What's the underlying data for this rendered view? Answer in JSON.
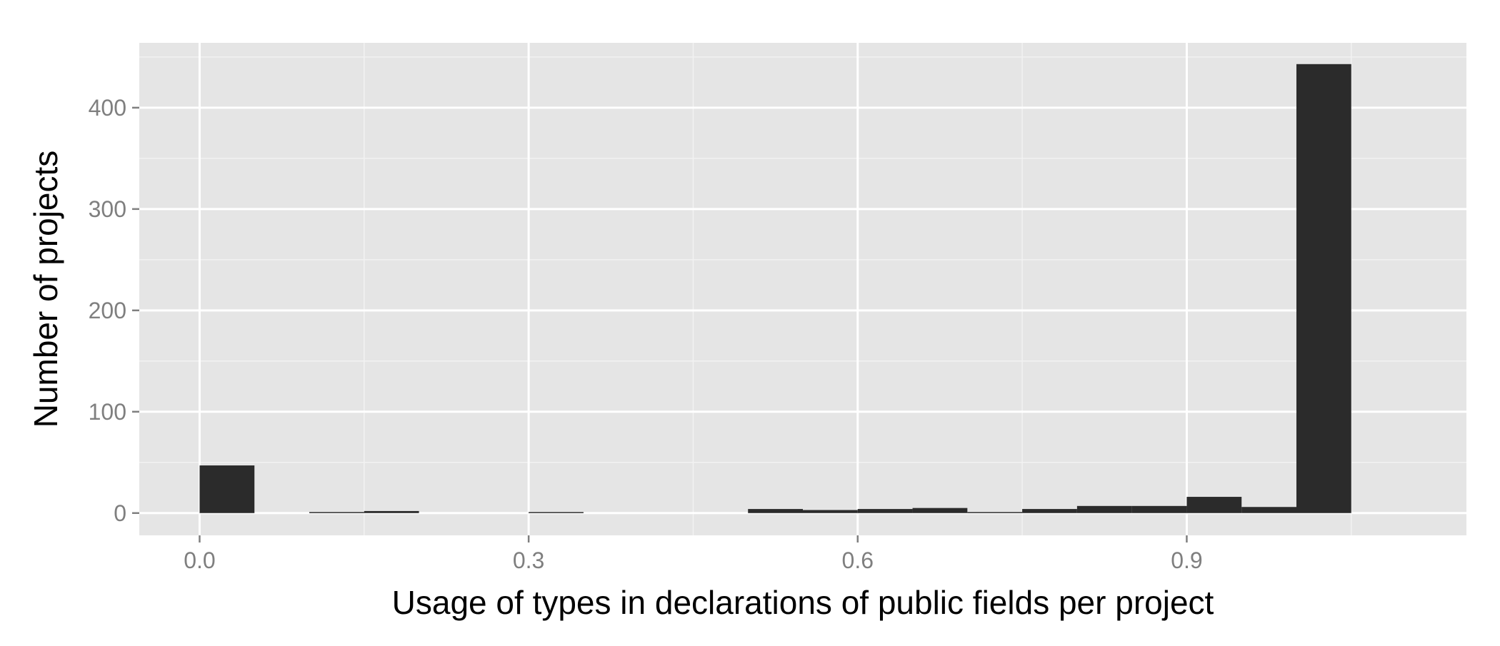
{
  "chart_data": {
    "type": "bar",
    "title": "",
    "xlabel": "Usage of types in declarations of public fields per project",
    "ylabel": "Number of projects",
    "xlim": [
      -0.055,
      1.155
    ],
    "ylim": [
      -22,
      464
    ],
    "x_ticks": [
      {
        "value": 0.0,
        "label": "0.0"
      },
      {
        "value": 0.3,
        "label": "0.3"
      },
      {
        "value": 0.6,
        "label": "0.6"
      },
      {
        "value": 0.9,
        "label": "0.9"
      }
    ],
    "y_ticks": [
      {
        "value": 0,
        "label": "0"
      },
      {
        "value": 100,
        "label": "100"
      },
      {
        "value": 200,
        "label": "200"
      },
      {
        "value": 300,
        "label": "300"
      },
      {
        "value": 400,
        "label": "400"
      }
    ],
    "bin_width": 0.05,
    "bin_starts": [
      0.0,
      0.05,
      0.1,
      0.15,
      0.2,
      0.25,
      0.3,
      0.35,
      0.4,
      0.45,
      0.5,
      0.55,
      0.6,
      0.65,
      0.7,
      0.75,
      0.8,
      0.85,
      0.9,
      0.95,
      1.0
    ],
    "values": [
      47,
      0,
      1,
      2,
      0,
      0,
      1,
      0,
      0,
      0,
      4,
      3,
      4,
      5,
      1,
      4,
      7,
      7,
      16,
      6,
      443
    ],
    "grid": true,
    "colors": {
      "panel": "#e5e5e5",
      "grid_major": "#ffffff",
      "grid_minor": "#f2f2f2",
      "bar": "#2b2b2b",
      "tick_label": "#7f7f7f",
      "axis_title": "#000000"
    }
  }
}
